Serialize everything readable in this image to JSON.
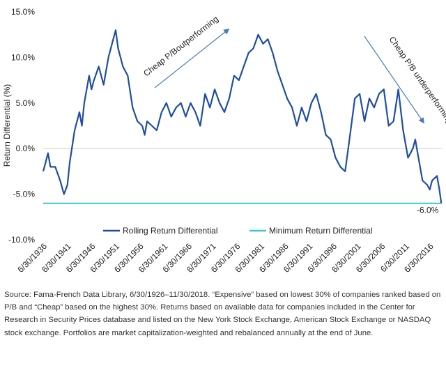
{
  "chart_data": {
    "type": "line",
    "y_label": "Return Differential (%)",
    "x": [
      1936.5,
      1937,
      1937.5,
      1938,
      1939,
      1940,
      1940.8,
      1941.5,
      1942,
      1943,
      1944,
      1944.5,
      1945,
      1946,
      1946.5,
      1947,
      1948,
      1949,
      1950,
      1951,
      1951.5,
      1952,
      1953,
      1954,
      1955,
      1956,
      1957,
      1957.5,
      1958,
      1959,
      1960,
      1961,
      1962,
      1963,
      1964,
      1965,
      1966,
      1967,
      1968,
      1969,
      1970,
      1971,
      1972,
      1973,
      1974,
      1975,
      1976,
      1977,
      1978,
      1979,
      1980,
      1981,
      1982,
      1983,
      1984,
      1985,
      1986,
      1987,
      1988,
      1989,
      1990,
      1991,
      1992,
      1993,
      1994,
      1995,
      1996,
      1997,
      1998,
      1999,
      2000,
      2001,
      2002,
      2003,
      2004,
      2005,
      2006,
      2007,
      2008,
      2009,
      2010,
      2011,
      2012,
      2013,
      2013.5,
      2014,
      2015,
      2016,
      2016.5,
      2017,
      2018,
      2018.5,
      2018.9
    ],
    "series": [
      {
        "name": "Rolling Return Differential",
        "color": "#1f4ea3",
        "values": [
          -2.5,
          -1.5,
          -0.5,
          -2,
          -2,
          -3.5,
          -5,
          -4,
          -1.5,
          2,
          4,
          2.5,
          5,
          8,
          6.5,
          7.5,
          9,
          7,
          10,
          12,
          13,
          11,
          9,
          8,
          4.5,
          3,
          2.5,
          1.5,
          3,
          2.5,
          2,
          4,
          5,
          3.5,
          4.5,
          5,
          3.5,
          5,
          4,
          2.5,
          6,
          4.5,
          6.5,
          5,
          4,
          5.5,
          8,
          7.5,
          9,
          10.5,
          11,
          12.5,
          11.5,
          12,
          10.5,
          8.5,
          7,
          5.5,
          4.5,
          2.5,
          4.5,
          3,
          5,
          6,
          4,
          1.5,
          1,
          -1,
          -2,
          -2.5,
          1.5,
          5.5,
          6,
          3,
          5.5,
          4.5,
          6,
          6.5,
          2.5,
          3,
          6.5,
          2,
          -1,
          0,
          1,
          -0.5,
          -3.5,
          -4,
          -4.5,
          -3.5,
          -3,
          -4.5,
          -6
        ]
      },
      {
        "name": "Minimum Return Differential",
        "color": "#3cc8c8",
        "values": [
          -6,
          -6,
          -6,
          -6,
          -6,
          -6,
          -6,
          -6,
          -6,
          -6,
          -6,
          -6,
          -6,
          -6,
          -6,
          -6,
          -6,
          -6,
          -6,
          -6,
          -6,
          -6,
          -6,
          -6,
          -6,
          -6,
          -6,
          -6,
          -6,
          -6,
          -6,
          -6,
          -6,
          -6,
          -6,
          -6,
          -6,
          -6,
          -6,
          -6,
          -6,
          -6,
          -6,
          -6,
          -6,
          -6,
          -6,
          -6,
          -6,
          -6,
          -6,
          -6,
          -6,
          -6,
          -6,
          -6,
          -6,
          -6,
          -6,
          -6,
          -6,
          -6,
          -6,
          -6,
          -6,
          -6,
          -6,
          -6,
          -6,
          -6,
          -6,
          -6,
          -6,
          -6,
          -6,
          -6,
          -6,
          -6,
          -6,
          -6,
          -6,
          -6,
          -6,
          -6,
          -6,
          -6,
          -6,
          -6,
          -6,
          -6,
          -6,
          -6,
          -6
        ]
      }
    ],
    "end_label": {
      "value": -6.0,
      "label": "-6.0%"
    },
    "xlim": [
      1936.5,
      2019
    ],
    "xticks": [
      {
        "value": 1936.5,
        "label": "6/30/1936"
      },
      {
        "value": 1941.5,
        "label": "6/30/1941"
      },
      {
        "value": 1946.5,
        "label": "6/30/1946"
      },
      {
        "value": 1951.5,
        "label": "6/30/1951"
      },
      {
        "value": 1956.5,
        "label": "6/30/1956"
      },
      {
        "value": 1961.5,
        "label": "6/30/1961"
      },
      {
        "value": 1966.5,
        "label": "6/30/1966"
      },
      {
        "value": 1971.5,
        "label": "6/30/1971"
      },
      {
        "value": 1976.5,
        "label": "6/30/1976"
      },
      {
        "value": 1981.5,
        "label": "6/30/1981"
      },
      {
        "value": 1986.5,
        "label": "6/30/1986"
      },
      {
        "value": 1991.5,
        "label": "6/30/1991"
      },
      {
        "value": 1996.5,
        "label": "6/30/1996"
      },
      {
        "value": 2001.5,
        "label": "6/30/2001"
      },
      {
        "value": 2006.5,
        "label": "6/30/2006"
      },
      {
        "value": 2011.5,
        "label": "6/30/2011"
      },
      {
        "value": 2016.5,
        "label": "6/30/2016"
      }
    ],
    "ylim": [
      -10,
      15
    ],
    "yticks": [
      {
        "value": -10,
        "label": "-10.0%"
      },
      {
        "value": -5,
        "label": "-5.0%"
      },
      {
        "value": 0,
        "label": "0.0%"
      },
      {
        "value": 5,
        "label": "5.0%"
      },
      {
        "value": 10,
        "label": "10.0%"
      },
      {
        "value": 15,
        "label": "15.0%"
      }
    ],
    "annotations": [
      "Cheap P/Boutperforming",
      "Cheap P/B underperforming"
    ],
    "legend": "bottom",
    "note": "Source: Fama-French Data Library, 6/30/1926–11/30/2018. “Expensive” based on lowest 30% of companies ranked based on P/B and “Cheap” based on the highest 30%. Returns based on available data for companies included in the Center for Research in Security Prices database and listed on the New York Stock Exchange, American Stock Exchange or NASDAQ stock exchange. Portfolios are market capitalization-weighted and rebalanced annually at the end of June."
  }
}
